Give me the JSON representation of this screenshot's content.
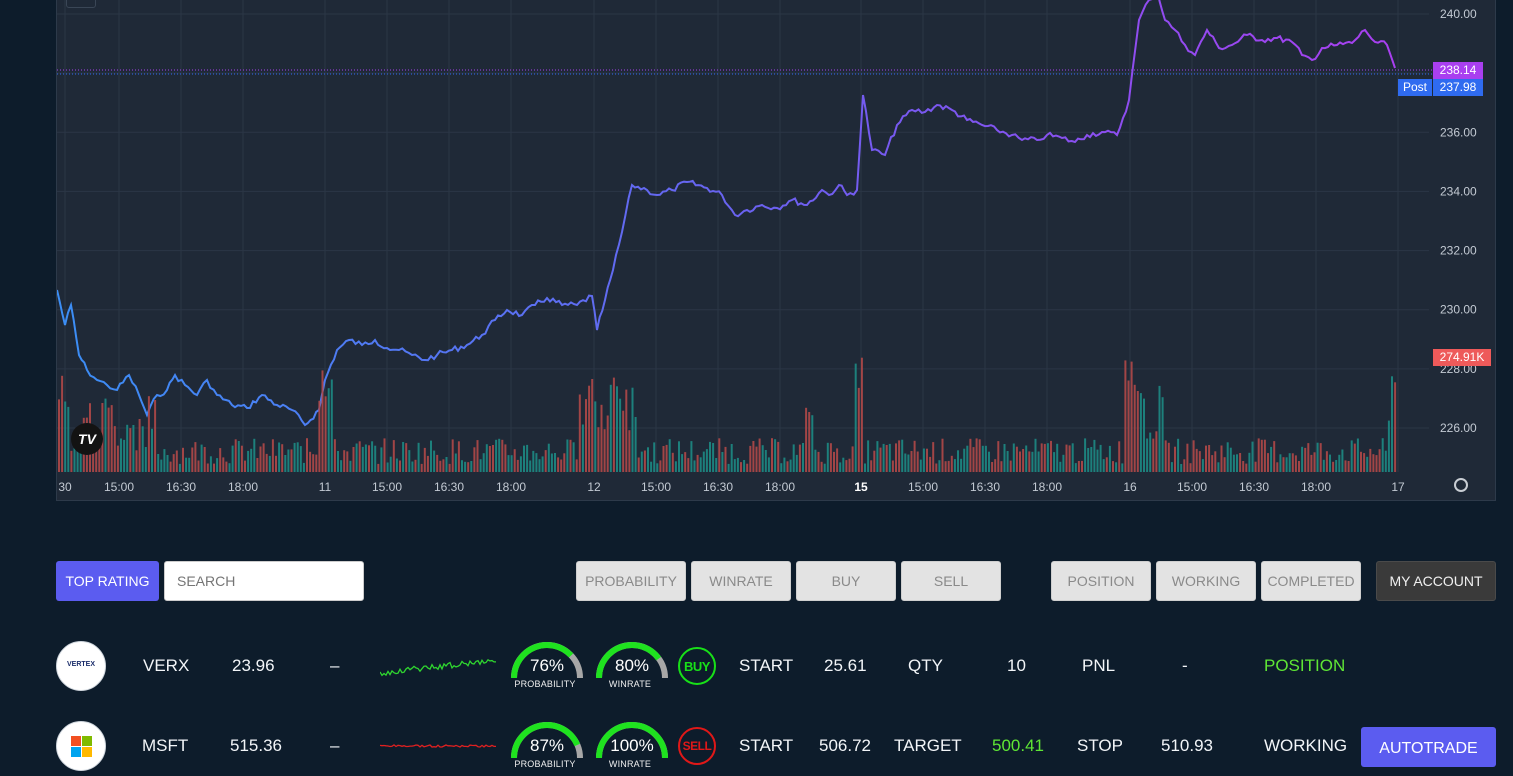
{
  "chart": {
    "price_labels": [
      "240.00",
      "236.00",
      "234.00",
      "232.00",
      "230.00",
      "228.00",
      "226.00"
    ],
    "price_values": [
      240,
      236,
      234,
      232,
      230,
      228,
      226
    ],
    "time_labels": [
      {
        "t": "30",
        "bold": false
      },
      {
        "t": "15:00",
        "bold": false
      },
      {
        "t": "16:30",
        "bold": false
      },
      {
        "t": "18:00",
        "bold": false
      },
      {
        "t": "11",
        "bold": false
      },
      {
        "t": "15:00",
        "bold": false
      },
      {
        "t": "16:30",
        "bold": false
      },
      {
        "t": "18:00",
        "bold": false
      },
      {
        "t": "12",
        "bold": false
      },
      {
        "t": "15:00",
        "bold": false
      },
      {
        "t": "16:30",
        "bold": false
      },
      {
        "t": "18:00",
        "bold": false
      },
      {
        "t": "15",
        "bold": true
      },
      {
        "t": "15:00",
        "bold": false
      },
      {
        "t": "16:30",
        "bold": false
      },
      {
        "t": "18:00",
        "bold": false
      },
      {
        "t": "16",
        "bold": false
      },
      {
        "t": "15:00",
        "bold": false
      },
      {
        "t": "16:30",
        "bold": false
      },
      {
        "t": "18:00",
        "bold": false
      },
      {
        "t": "17",
        "bold": false
      }
    ],
    "last_price": "238.14",
    "post_label": "Post",
    "post_price": "237.98",
    "volume_label": "274.91K",
    "colors": {
      "line_start": "#3b8ef5",
      "line_mid": "#6d5ff0",
      "line_end": "#a93ff0",
      "vol_up": "#1d8a84",
      "vol_down": "#b04848",
      "last_tag": "#a93ff0",
      "post_tag": "#2f6bf0",
      "vol_tag": "#ee5a5a"
    },
    "logo_icon": "tradingview-logo-icon",
    "settings_icon": "gear-icon"
  },
  "toolbar": {
    "top_rating": "TOP RATING",
    "search_placeholder": "SEARCH",
    "probability": "PROBABILITY",
    "winrate": "WINRATE",
    "buy": "BUY",
    "sell": "SELL",
    "position": "POSITION",
    "working": "WORKING",
    "completed": "COMPLETED",
    "my_account": "MY ACCOUNT"
  },
  "rows": [
    {
      "logo_text": "VERTEX",
      "symbol": "VERX",
      "price": "23.96",
      "dash": "–",
      "spark_color": "#2fd62f",
      "prob": "76%",
      "prob_fraction": 0.76,
      "prob_label": "PROBABILITY",
      "win": "80%",
      "win_fraction": 0.8,
      "win_label": "WINRATE",
      "signal": "BUY",
      "signal_color": "#18e018",
      "start_label": "START",
      "start_value": "25.61",
      "mid_label": "QTY",
      "mid_value": "10",
      "mid_value_color": "#f2f5f8",
      "third_label": "PNL",
      "third_value": "-",
      "status": "POSITION",
      "status_color": "#5fe635"
    },
    {
      "logo_text": "MSFT",
      "symbol": "MSFT",
      "price": "515.36",
      "dash": "–",
      "spark_color": "#e02020",
      "prob": "87%",
      "prob_fraction": 0.87,
      "prob_label": "PROBABILITY",
      "win": "100%",
      "win_fraction": 1.0,
      "win_label": "WINRATE",
      "signal": "SELL",
      "signal_color": "#e01818",
      "start_label": "START",
      "start_value": "506.72",
      "mid_label": "TARGET",
      "mid_value": "500.41",
      "mid_value_color": "#5fe635",
      "third_label": "STOP",
      "third_value": "510.93",
      "status": "WORKING",
      "status_color": "#f2f5f8",
      "action": "AUTOTRADE"
    }
  ]
}
